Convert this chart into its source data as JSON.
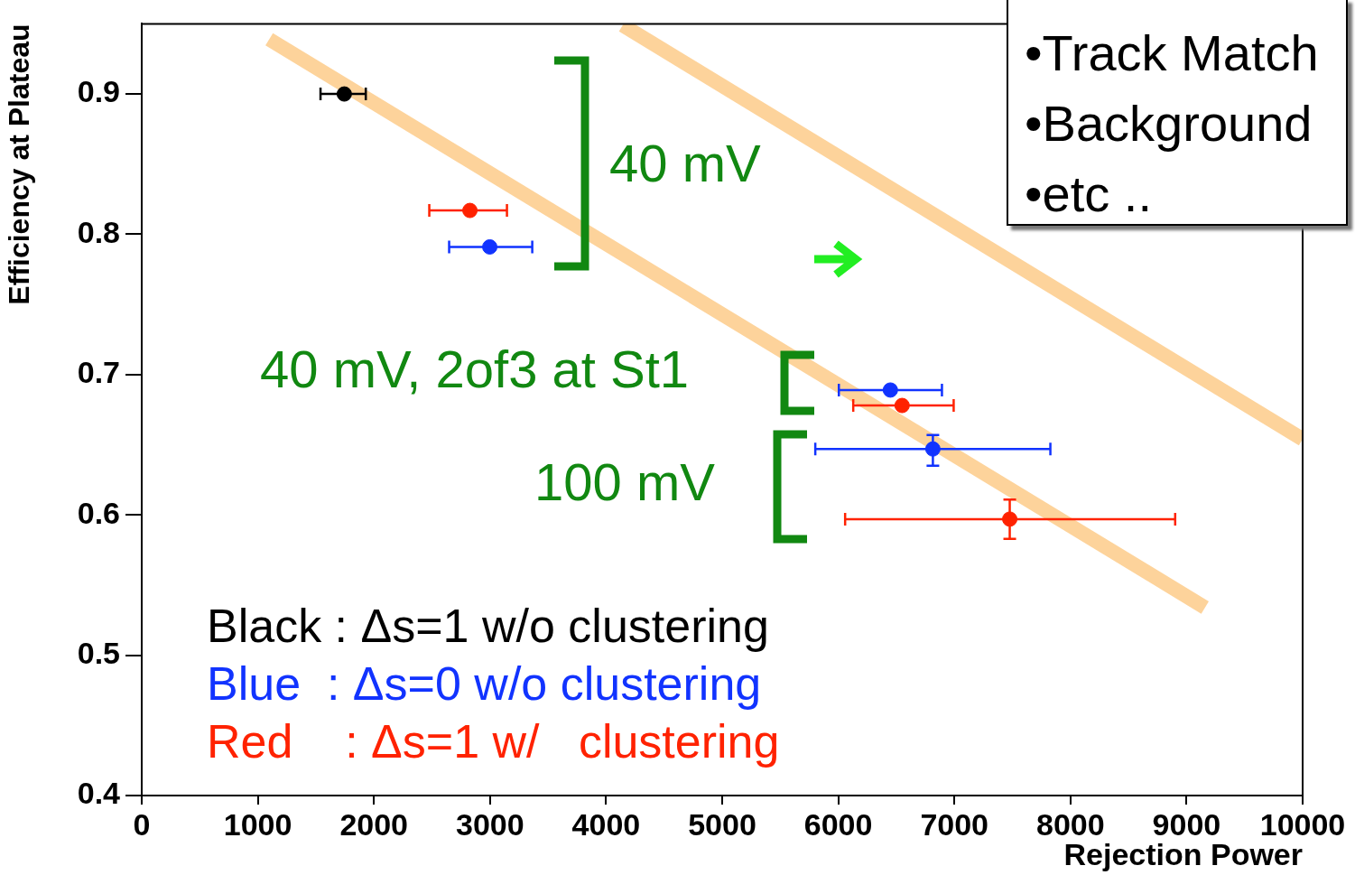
{
  "chart_data": {
    "type": "scatter",
    "xlabel": "Rejection Power",
    "ylabel": "Efficiency at Plateau",
    "xlim": [
      0,
      10000
    ],
    "xticks": [
      0,
      1000,
      2000,
      3000,
      4000,
      5000,
      6000,
      7000,
      8000,
      9000,
      10000
    ],
    "ylim": [
      0.4,
      0.95
    ],
    "yticks": [
      0.4,
      0.5,
      0.6,
      0.7,
      0.8,
      0.9
    ],
    "grid": false,
    "legend": "bottom left",
    "series": [
      {
        "name": "Black : Δs=1 w/o clustering",
        "color": "#000000",
        "marker": "circle",
        "x": [
          1745
        ],
        "values": [
          0.9
        ],
        "xerrors": [
          [
            1540,
            1930
          ]
        ]
      },
      {
        "name": "Blue  : Δs=0 w/o clustering",
        "color": "#1133ff",
        "marker": "circle",
        "x": [
          2998,
          6449,
          6815
        ],
        "values": [
          0.791,
          0.689,
          0.647
        ],
        "xerrors": [
          [
            2648,
            3364
          ],
          [
            6005,
            6893
          ],
          [
            5802,
            7827
          ]
        ],
        "errors": [
          null,
          null,
          [
            0.635,
            0.657
          ]
        ]
      },
      {
        "name": "Red    : Δs=1 w/   clustering",
        "color": "#ff2200",
        "marker": "circle",
        "x": [
          2827,
          6550,
          7477
        ],
        "values": [
          0.817,
          0.678,
          0.597
        ],
        "xerrors": [
          [
            2477,
            3146
          ],
          [
            6129,
            6994
          ],
          [
            6059,
            8902
          ]
        ],
        "errors": [
          null,
          null,
          [
            0.583,
            0.611
          ]
        ]
      },
      {
        "type": "line",
        "color": "#fdd39b",
        "marker": "none",
        "x": [
          1098,
          9159
        ],
        "values": [
          0.939,
          0.534
        ]
      },
      {
        "type": "line",
        "color": "#fdd39b",
        "marker": "none",
        "x": [
          4143,
          10000
        ],
        "values": [
          0.949,
          0.654
        ]
      }
    ],
    "annotations": [
      "40 mV",
      "40 mV, 2of3 at St1",
      "100 mV",
      "•Track Match",
      "•Background",
      "•etc .."
    ]
  }
}
